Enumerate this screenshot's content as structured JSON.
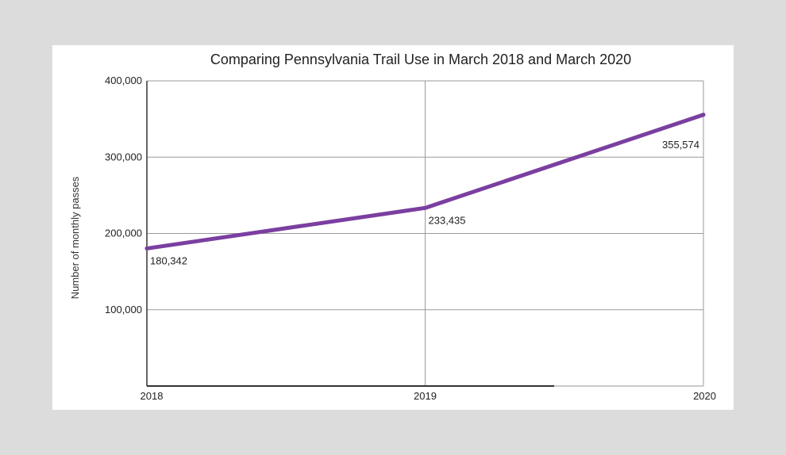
{
  "chart_data": {
    "type": "line",
    "title": "Comparing Pennsylvania Trail Use in March 2018 and March 2020",
    "xlabel": "",
    "ylabel": "Number of monthly passes",
    "x": [
      "2018",
      "2019",
      "2020"
    ],
    "series": [
      {
        "values": [
          180342,
          233435,
          355574
        ],
        "data_labels": [
          "180,342",
          "233,435",
          "355,574"
        ],
        "color": "#7a3fa0"
      }
    ],
    "ylim": [
      0,
      400000
    ],
    "yticks": [
      100000,
      200000,
      300000,
      400000
    ],
    "ytick_labels": [
      "100,000",
      "200,000",
      "300,000",
      "400,000"
    ],
    "grid": true,
    "legend": "none"
  }
}
